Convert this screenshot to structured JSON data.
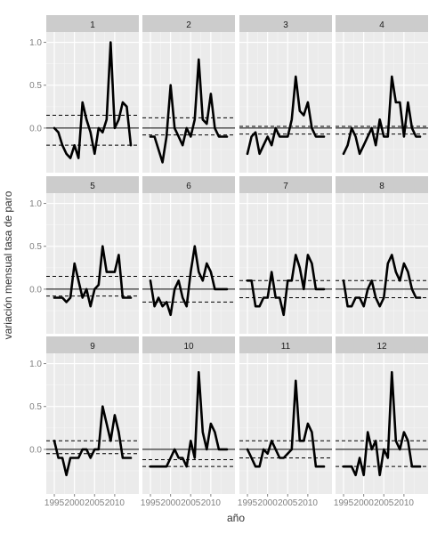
{
  "chart_data": {
    "type": "line",
    "facet_type": "facet_wrap",
    "xlabel": "año",
    "ylabel": "variación mensual tasa de paro",
    "x_ticks": [
      1995,
      2000,
      2005,
      2010
    ],
    "x_tick_labels": [
      "1995",
      "2000",
      "2005",
      "2010"
    ],
    "y_ticks": [
      0.0,
      0.5,
      1.0
    ],
    "y_tick_labels": [
      "0.0",
      "0.5",
      "1.0"
    ],
    "xlim": [
      1993,
      2016
    ],
    "ylim": [
      -0.52,
      1.12
    ],
    "grid": true,
    "legend": "none",
    "colors": {
      "panel_bg": "#ebebeb",
      "strip_bg": "#cccccc",
      "grid_major": "#ffffff",
      "grid_minor": "#f5f5f5",
      "line": "#000000",
      "tick_text": "#808080",
      "axis_title": "#333333"
    },
    "years": [
      1995,
      1996,
      1997,
      1998,
      1999,
      2000,
      2001,
      2002,
      2003,
      2004,
      2005,
      2006,
      2007,
      2008,
      2009,
      2010,
      2011,
      2012,
      2013,
      2014
    ],
    "panels": [
      {
        "strip": "1",
        "ref_upper": 0.15,
        "ref_lower": -0.2,
        "values": [
          0.0,
          -0.05,
          -0.2,
          -0.3,
          -0.35,
          -0.2,
          -0.35,
          0.3,
          0.1,
          -0.05,
          -0.3,
          0.0,
          -0.05,
          0.1,
          1.0,
          0.0,
          0.1,
          0.3,
          0.25,
          -0.2
        ]
      },
      {
        "strip": "2",
        "ref_upper": 0.12,
        "ref_lower": -0.08,
        "values": [
          -0.1,
          -0.1,
          -0.25,
          -0.4,
          -0.1,
          0.5,
          0.0,
          -0.1,
          -0.2,
          0.0,
          -0.1,
          0.1,
          0.8,
          0.1,
          0.05,
          0.4,
          0.0,
          -0.1,
          -0.1,
          -0.1
        ]
      },
      {
        "strip": "3",
        "ref_upper": 0.02,
        "ref_lower": -0.07,
        "values": [
          -0.3,
          -0.1,
          -0.05,
          -0.3,
          -0.2,
          -0.1,
          -0.2,
          0.0,
          -0.1,
          -0.1,
          -0.1,
          0.1,
          0.6,
          0.2,
          0.15,
          0.3,
          0.0,
          -0.1,
          -0.1,
          -0.1
        ]
      },
      {
        "strip": "4",
        "ref_upper": 0.02,
        "ref_lower": -0.07,
        "values": [
          -0.3,
          -0.2,
          0.0,
          -0.1,
          -0.3,
          -0.2,
          -0.1,
          0.0,
          -0.2,
          0.1,
          -0.1,
          -0.1,
          0.6,
          0.3,
          0.3,
          -0.1,
          0.3,
          0.0,
          -0.1,
          -0.1
        ]
      },
      {
        "strip": "5",
        "ref_upper": 0.15,
        "ref_lower": -0.08,
        "values": [
          -0.1,
          -0.1,
          -0.1,
          -0.15,
          -0.1,
          0.3,
          0.1,
          -0.1,
          0.0,
          -0.2,
          0.0,
          0.05,
          0.5,
          0.2,
          0.2,
          0.2,
          0.4,
          -0.1,
          -0.1,
          -0.1
        ]
      },
      {
        "strip": "6",
        "ref_upper": 0.15,
        "ref_lower": -0.15,
        "values": [
          0.1,
          -0.2,
          -0.1,
          -0.2,
          -0.15,
          -0.3,
          0.0,
          0.1,
          -0.1,
          -0.2,
          0.2,
          0.5,
          0.2,
          0.1,
          0.3,
          0.2,
          0.0,
          0.0,
          0.0,
          0.0
        ]
      },
      {
        "strip": "7",
        "ref_upper": 0.1,
        "ref_lower": -0.1,
        "values": [
          0.1,
          0.1,
          -0.2,
          -0.2,
          -0.1,
          -0.1,
          0.2,
          -0.1,
          -0.1,
          -0.3,
          0.1,
          0.1,
          0.4,
          0.25,
          0.0,
          0.4,
          0.3,
          0.0,
          0.0,
          0.0
        ]
      },
      {
        "strip": "8",
        "ref_upper": 0.1,
        "ref_lower": -0.1,
        "values": [
          0.1,
          -0.2,
          -0.2,
          -0.1,
          -0.1,
          -0.2,
          0.0,
          0.1,
          -0.1,
          -0.2,
          -0.1,
          0.3,
          0.4,
          0.2,
          0.1,
          0.3,
          0.2,
          0.0,
          -0.1,
          -0.1
        ]
      },
      {
        "strip": "9",
        "ref_upper": 0.1,
        "ref_lower": -0.05,
        "values": [
          0.1,
          -0.1,
          -0.1,
          -0.3,
          -0.1,
          -0.1,
          -0.1,
          0.0,
          0.0,
          -0.1,
          0.0,
          0.0,
          0.5,
          0.3,
          0.1,
          0.4,
          0.2,
          -0.1,
          -0.1,
          -0.1
        ]
      },
      {
        "strip": "10",
        "ref_upper": -0.12,
        "ref_lower": -0.2,
        "values": [
          -0.2,
          -0.2,
          -0.2,
          -0.2,
          -0.2,
          -0.1,
          0.0,
          -0.1,
          -0.1,
          -0.2,
          0.1,
          -0.1,
          0.9,
          0.2,
          0.0,
          0.3,
          0.2,
          0.0,
          0.0,
          0.0
        ]
      },
      {
        "strip": "11",
        "ref_upper": 0.1,
        "ref_lower": -0.1,
        "values": [
          0.0,
          -0.1,
          -0.2,
          -0.2,
          0.0,
          -0.05,
          0.1,
          0.0,
          -0.1,
          -0.1,
          -0.05,
          0.0,
          0.8,
          0.1,
          0.1,
          0.3,
          0.2,
          -0.2,
          -0.2,
          -0.2
        ]
      },
      {
        "strip": "12",
        "ref_upper": 0.1,
        "ref_lower": -0.2,
        "values": [
          -0.2,
          -0.2,
          -0.2,
          -0.3,
          -0.1,
          -0.3,
          0.2,
          0.0,
          0.1,
          -0.3,
          0.0,
          -0.1,
          0.9,
          0.1,
          0.0,
          0.2,
          0.1,
          -0.2,
          -0.2,
          -0.2
        ]
      }
    ]
  }
}
